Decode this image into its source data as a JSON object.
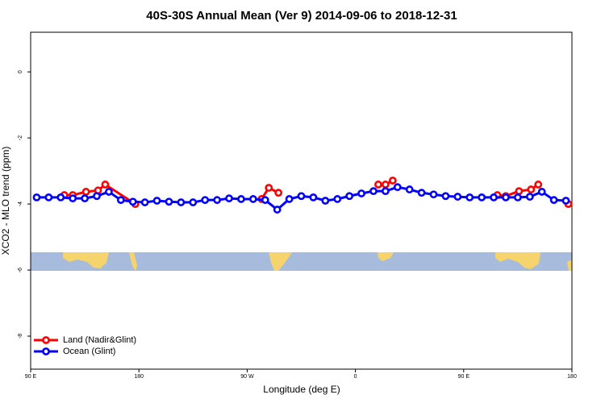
{
  "chart_data": {
    "type": "line",
    "title": "40S-30S Annual Mean (Ver 9)   2014-09-06 to 2018-12-31",
    "xlabel": "Longitude (deg E)",
    "ylabel": "XCO2 - MLO trend (ppm)",
    "xlim": [
      90,
      540
    ],
    "ylim": [
      -9,
      1.2
    ],
    "xticks": [
      {
        "value": 90,
        "label": "90 E"
      },
      180,
      {
        "value": 270,
        "label": "90 W"
      },
      {
        "value": 360,
        "label": "0"
      },
      {
        "value": 450,
        "label": "90 E"
      },
      {
        "value": 540,
        "label": "180"
      }
    ],
    "yticks": [
      0,
      -2,
      -4,
      -6,
      -8
    ],
    "legend": "bottom-left",
    "series": [
      {
        "name": "Land (Nadir&Glint)",
        "color": "#ff0000",
        "x": [
          118,
          125,
          136,
          146,
          152,
          177,
          null,
          282,
          288,
          296,
          null,
          379,
          385,
          391,
          null,
          478,
          485,
          496,
          506,
          512,
          null,
          537
        ],
        "values": [
          -3.73,
          -3.73,
          -3.63,
          -3.59,
          -3.41,
          -4.0,
          null,
          -3.85,
          -3.51,
          -3.66,
          null,
          -3.41,
          -3.41,
          -3.29,
          null,
          -3.73,
          -3.76,
          -3.61,
          -3.56,
          -3.41,
          null,
          -4.0
        ]
      },
      {
        "name": "Ocean (Glint)",
        "color": "#0000ff",
        "x": [
          95,
          105,
          115,
          125,
          135,
          145,
          155,
          165,
          175,
          185,
          195,
          205,
          215,
          225,
          235,
          245,
          255,
          265,
          275,
          285,
          295,
          305,
          315,
          325,
          335,
          345,
          355,
          365,
          375,
          385,
          395,
          405,
          415,
          425,
          435,
          445,
          455,
          465,
          475,
          485,
          495,
          505,
          515,
          525,
          535
        ],
        "values": [
          -3.8,
          -3.8,
          -3.8,
          -3.83,
          -3.83,
          -3.76,
          -3.63,
          -3.88,
          -3.93,
          -3.95,
          -3.9,
          -3.93,
          -3.95,
          -3.95,
          -3.88,
          -3.88,
          -3.83,
          -3.85,
          -3.85,
          -3.88,
          -4.17,
          -3.85,
          -3.76,
          -3.8,
          -3.9,
          -3.85,
          -3.76,
          -3.68,
          -3.61,
          -3.61,
          -3.49,
          -3.56,
          -3.66,
          -3.71,
          -3.76,
          -3.78,
          -3.8,
          -3.8,
          -3.8,
          -3.8,
          -3.8,
          -3.78,
          -3.63,
          -3.88,
          -3.9
        ]
      }
    ]
  }
}
